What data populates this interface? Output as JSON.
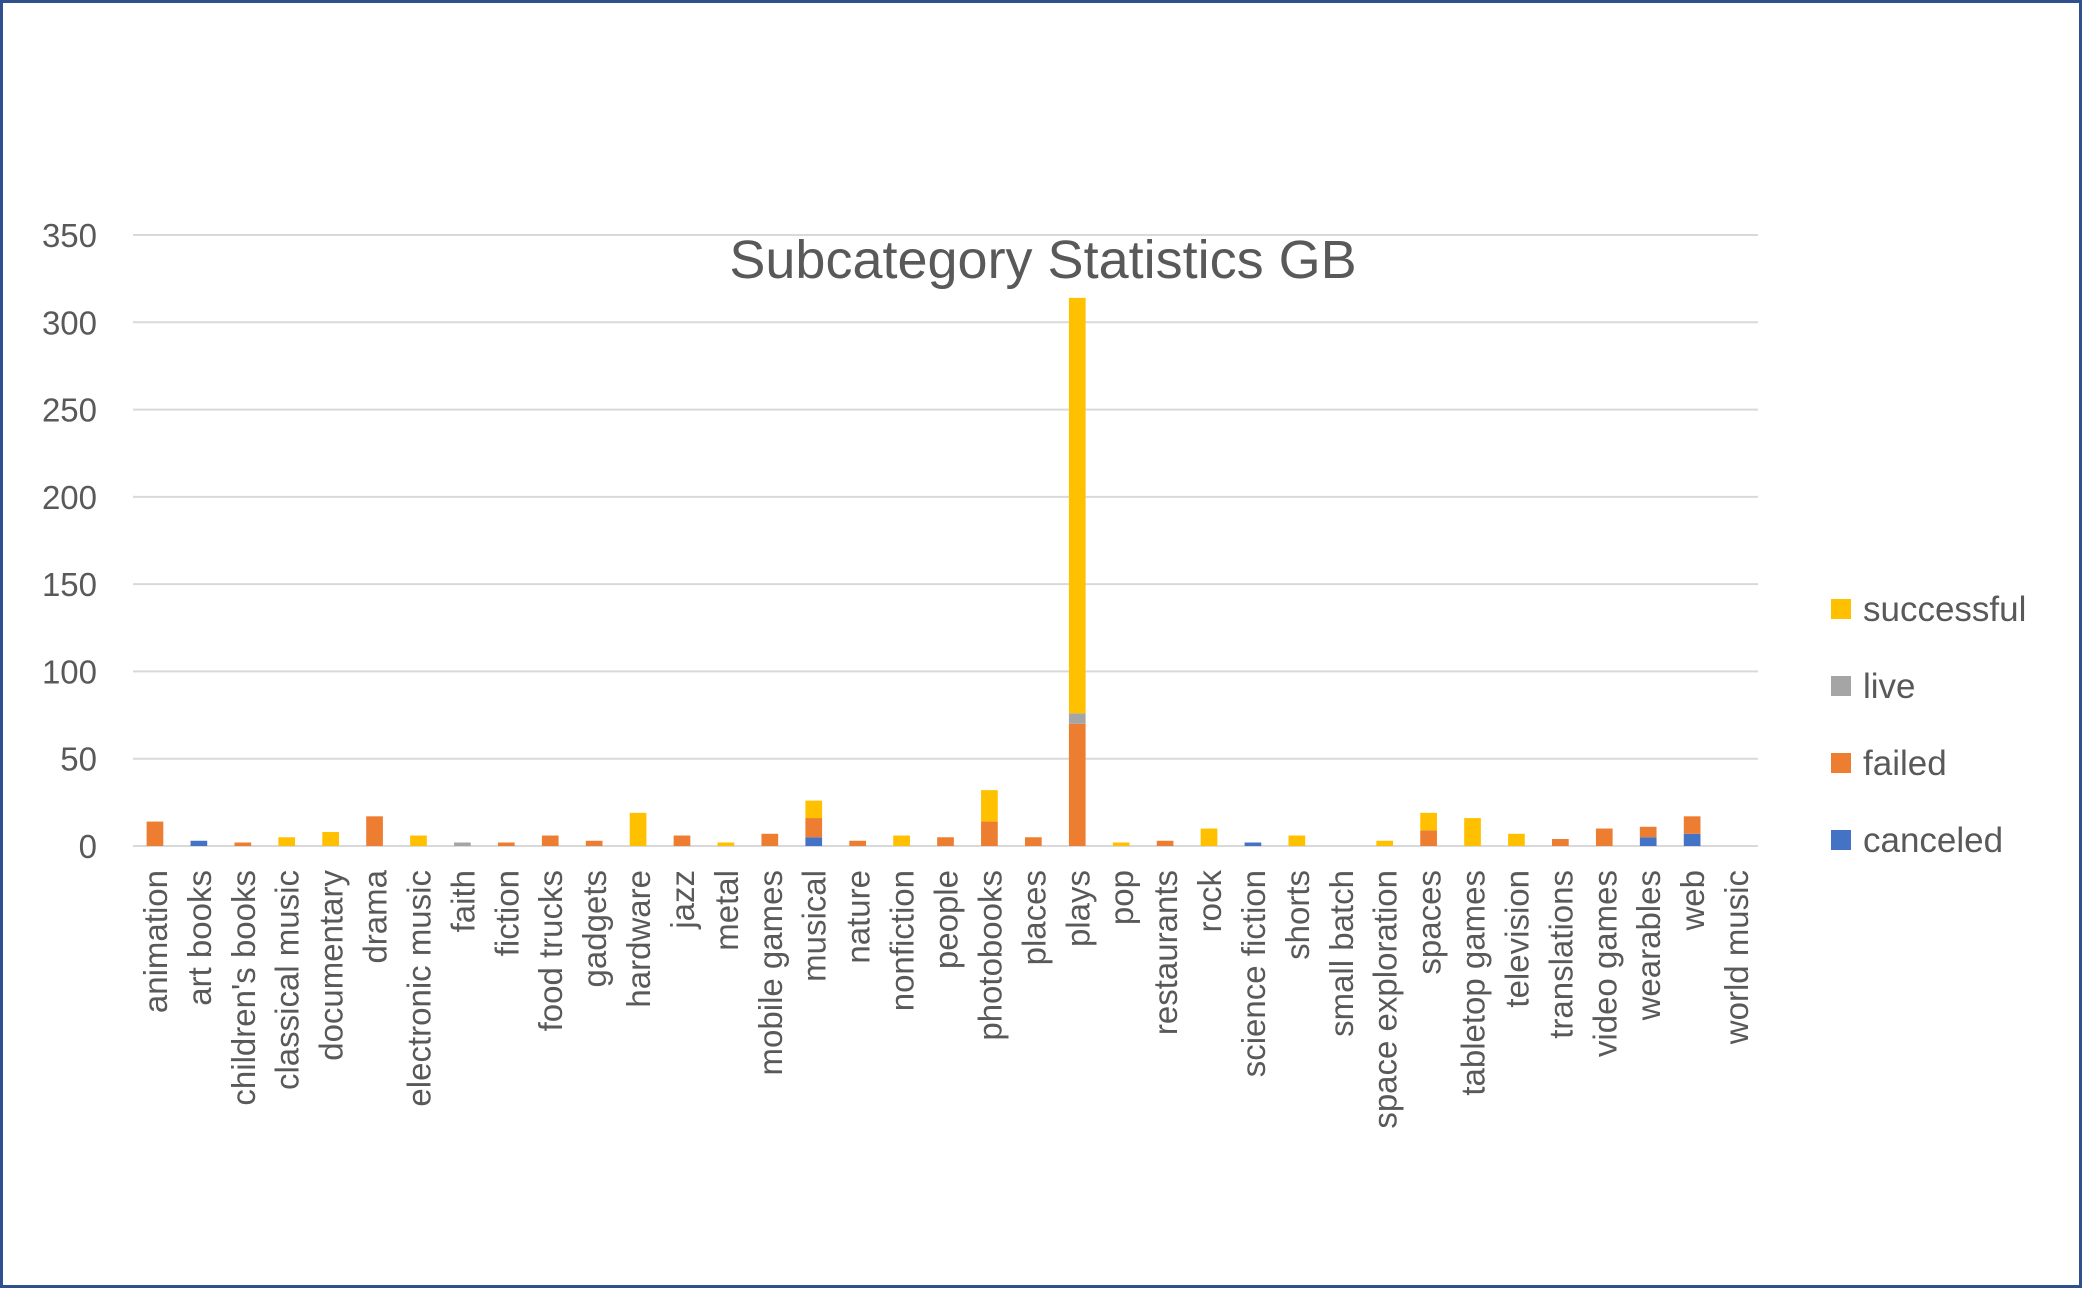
{
  "chart_data": {
    "type": "bar",
    "stacked": true,
    "title": "Subcategory Statistics GB",
    "xlabel": "",
    "ylabel": "",
    "ylim": [
      0,
      350
    ],
    "yticks": [
      0,
      50,
      100,
      150,
      200,
      250,
      300,
      350
    ],
    "grid": true,
    "legend_position": "right",
    "categories": [
      "animation",
      "art books",
      "children's books",
      "classical music",
      "documentary",
      "drama",
      "electronic music",
      "faith",
      "fiction",
      "food trucks",
      "gadgets",
      "hardware",
      "jazz",
      "metal",
      "mobile games",
      "musical",
      "nature",
      "nonfiction",
      "people",
      "photobooks",
      "places",
      "plays",
      "pop",
      "restaurants",
      "rock",
      "science fiction",
      "shorts",
      "small batch",
      "space exploration",
      "spaces",
      "tabletop games",
      "television",
      "translations",
      "video games",
      "wearables",
      "web",
      "world music"
    ],
    "series": [
      {
        "name": "canceled",
        "color": "#4472C4",
        "values": [
          0,
          3,
          0,
          0,
          0,
          0,
          0,
          0,
          0,
          0,
          0,
          0,
          0,
          0,
          0,
          5,
          0,
          0,
          0,
          0,
          0,
          0,
          0,
          0,
          0,
          2,
          0,
          0,
          0,
          0,
          0,
          0,
          0,
          0,
          5,
          7,
          0
        ]
      },
      {
        "name": "failed",
        "color": "#ED7D31",
        "values": [
          14,
          0,
          2,
          0,
          0,
          17,
          0,
          0,
          2,
          6,
          3,
          0,
          6,
          0,
          7,
          11,
          3,
          0,
          5,
          14,
          5,
          70,
          0,
          3,
          0,
          0,
          0,
          0,
          0,
          9,
          0,
          0,
          4,
          10,
          6,
          10,
          0
        ]
      },
      {
        "name": "live",
        "color": "#A5A5A5",
        "values": [
          0,
          0,
          0,
          0,
          0,
          0,
          0,
          2,
          0,
          0,
          0,
          0,
          0,
          0,
          0,
          0,
          0,
          0,
          0,
          0,
          0,
          6,
          0,
          0,
          0,
          0,
          0,
          0,
          0,
          0,
          0,
          0,
          0,
          0,
          0,
          0,
          0
        ]
      },
      {
        "name": "successful",
        "color": "#FFC000",
        "values": [
          0,
          0,
          0,
          5,
          8,
          0,
          6,
          0,
          0,
          0,
          0,
          19,
          0,
          2,
          0,
          10,
          0,
          6,
          0,
          18,
          0,
          238,
          2,
          0,
          10,
          0,
          6,
          0,
          3,
          10,
          16,
          7,
          0,
          0,
          0,
          0,
          0
        ]
      }
    ],
    "legend_order": [
      "successful",
      "live",
      "failed",
      "canceled"
    ]
  },
  "colors": {
    "frame_border": "#2f4f8f",
    "gridline": "#d9d9d9",
    "text": "#595959"
  }
}
